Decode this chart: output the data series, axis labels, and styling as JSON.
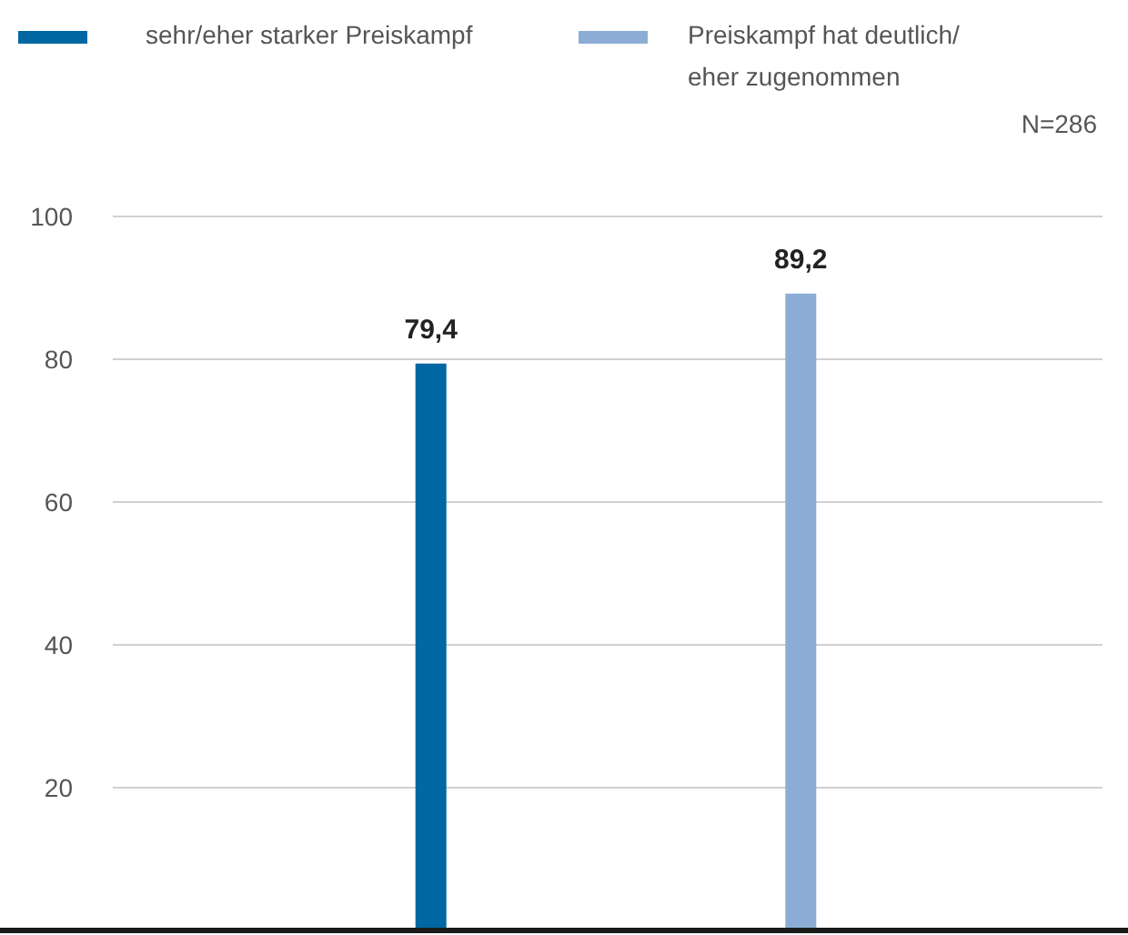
{
  "chart_data": {
    "type": "bar",
    "categories": [
      null,
      null
    ],
    "series": [
      {
        "name": "sehr/eher starker Preiskampf",
        "color": "#0067a3",
        "values": [
          79.4,
          null
        ],
        "value_labels": [
          "79,4",
          null
        ]
      },
      {
        "name": "Preiskampf hat deutlich/ eher zugenommen",
        "color": "#8badd5",
        "values": [
          null,
          89.2
        ],
        "value_labels": [
          null,
          "89,2"
        ]
      }
    ],
    "ylim": [
      0,
      100
    ],
    "yticks": [
      20,
      40,
      60,
      80,
      100
    ],
    "grid": "y",
    "legend": "top",
    "annotations": [
      "N=286"
    ]
  }
}
